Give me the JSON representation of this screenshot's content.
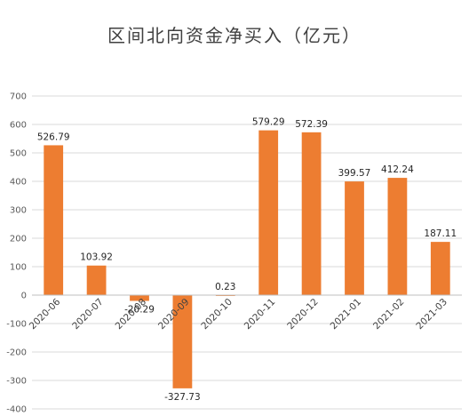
{
  "chart_data": {
    "type": "bar",
    "title": "区间北向资金净买入（亿元）",
    "categories": [
      "2020-06",
      "2020-07",
      "2020-08",
      "2020-09",
      "2020-10",
      "2020-11",
      "2020-12",
      "2021-01",
      "2021-02",
      "2021-03"
    ],
    "values": [
      526.79,
      103.92,
      -20.29,
      -327.73,
      0.23,
      579.29,
      572.39,
      399.57,
      412.24,
      187.11
    ],
    "data_labels": [
      "526.79",
      "103.92",
      "-20.29",
      "-327.73",
      "0.23",
      "579.29",
      "572.39",
      "399.57",
      "412.24",
      "187.11"
    ],
    "ylim": [
      -400,
      700
    ],
    "yticks": [
      700,
      600,
      500,
      400,
      300,
      200,
      100,
      0,
      -100,
      -200,
      -300,
      -400
    ],
    "grid": true,
    "bar_color": "#ED7D31",
    "grid_color": "#D9D9D9",
    "axis_color": "#BFBFBF"
  }
}
